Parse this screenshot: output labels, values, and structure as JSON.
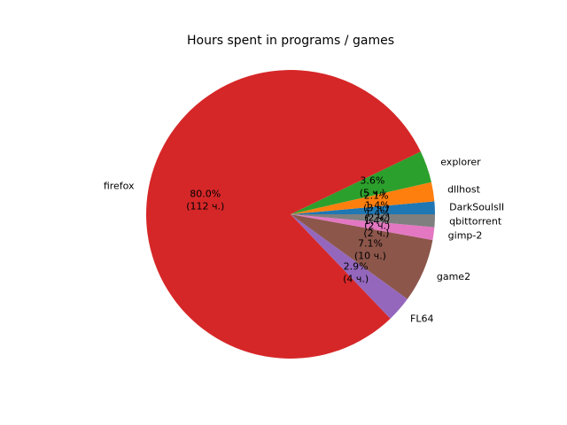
{
  "chart_data": {
    "type": "pie",
    "title": "Hours spent in programs / games",
    "start_angle_deg": 0,
    "direction": "counterclockwise",
    "legend": "none",
    "slices": [
      {
        "label": "DarkSoulsII",
        "value": 2,
        "pct_text": "1.4%",
        "value_text": "(2 ч.)",
        "color": "#1f77b4"
      },
      {
        "label": "dllhost",
        "value": 3,
        "pct_text": "2.1%",
        "value_text": "(3 ч.)",
        "color": "#ff7f0e"
      },
      {
        "label": "explorer",
        "value": 5,
        "pct_text": "3.6%",
        "value_text": "(5 ч.)",
        "color": "#2ca02c"
      },
      {
        "label": "firefox",
        "value": 112,
        "pct_text": "80.0%",
        "value_text": "(112 ч.)",
        "color": "#d62728"
      },
      {
        "label": "FL64",
        "value": 4,
        "pct_text": "2.9%",
        "value_text": "(4 ч.)",
        "color": "#9467bd"
      },
      {
        "label": "game2",
        "value": 10,
        "pct_text": "7.1%",
        "value_text": "(10 ч.)",
        "color": "#8c564b"
      },
      {
        "label": "gimp-2",
        "value": 2,
        "pct_text": "1.4%",
        "value_text": "(2 ч.)",
        "color": "#e377c2"
      },
      {
        "label": "qbittorrent",
        "value": 2,
        "pct_text": "1.4%",
        "value_text": "(2 ч.)",
        "color": "#7f7f7f"
      }
    ]
  }
}
